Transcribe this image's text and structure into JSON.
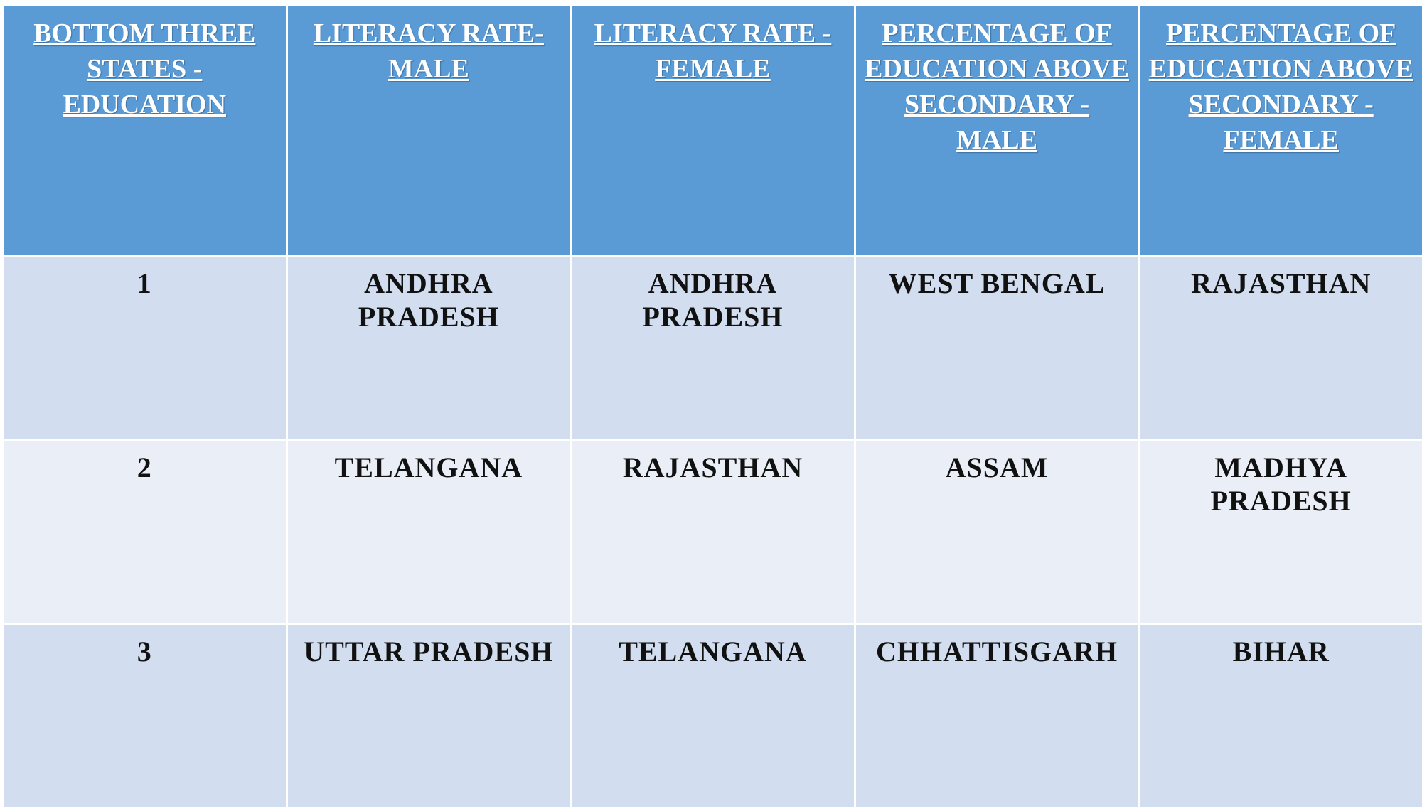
{
  "table": {
    "header": [
      "BOTTOM THREE STATES - EDUCATION",
      "LITERACY RATE- MALE",
      "LITERACY RATE - FEMALE",
      "PERCENTAGE OF EDUCATION ABOVE SECONDARY - MALE",
      "PERCENTAGE OF EDUCATION ABOVE SECONDARY - FEMALE"
    ],
    "rows": [
      [
        1,
        "ANDHRA PRADESH",
        "ANDHRA PRADESH",
        "WEST BENGAL",
        "RAJASTHAN"
      ],
      [
        2,
        "TELANGANA",
        "RAJASTHAN",
        "ASSAM",
        "MADHYA PRADESH"
      ],
      [
        3,
        "UTTAR PRADESH",
        "TELANGANA",
        "CHHATTISGARH",
        "BIHAR"
      ]
    ]
  }
}
